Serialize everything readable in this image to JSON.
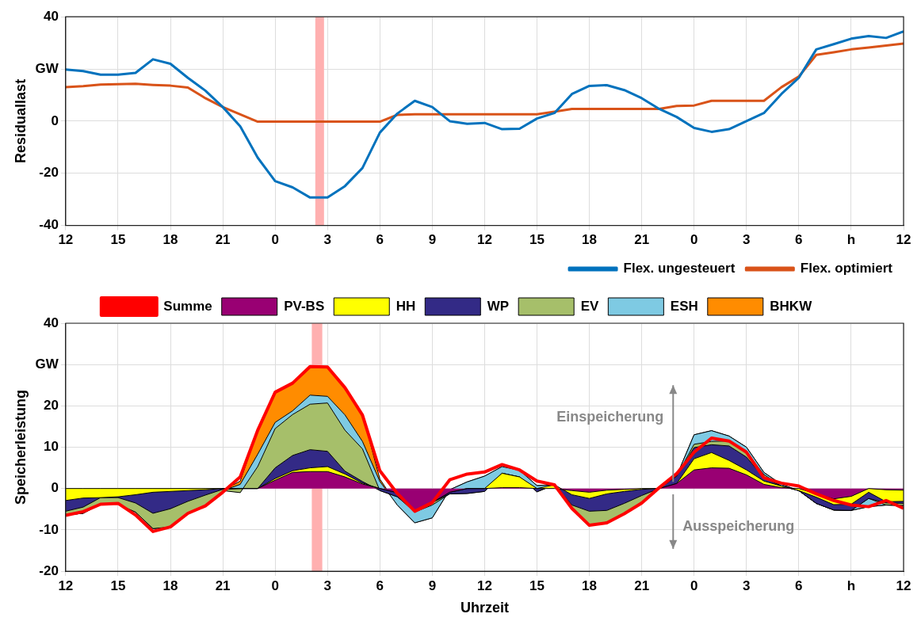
{
  "chart_data": [
    {
      "type": "line",
      "ylabel": "Residuallast",
      "x": [
        "--01-01T12:00",
        "--01-01T13:00",
        "--01-01T14:00",
        "--01-01T15:00",
        "--01-01T16:00",
        "--01-01T17:00",
        "--01-01T18:00",
        "--01-01T19:00",
        "--01-01T20:00",
        "--01-01T21:00",
        "--01-01T22:00",
        "--01-01T23:00",
        "--01-02T00:00",
        "--01-02T01:00",
        "--01-02T02:00",
        "--01-02T03:00",
        "--01-02T04:00",
        "--01-02T05:00",
        "--01-02T06:00",
        "--01-02T07:00",
        "--01-02T08:00",
        "--01-02T09:00",
        "--01-02T10:00",
        "--01-02T11:00",
        "--01-02T12:00",
        "--01-02T13:00",
        "--01-02T14:00",
        "--01-02T15:00",
        "--01-02T16:00",
        "--01-02T17:00",
        "--01-02T18:00",
        "--01-02T19:00",
        "--01-02T20:00",
        "--01-02T21:00",
        "--01-02T22:00",
        "--01-02T23:00",
        "--01-03T00:00",
        "--01-03T01:00",
        "--01-03T02:00",
        "--01-03T03:00",
        "--01-03T04:00",
        "--01-03T05:00",
        "--01-03T06:00",
        "--01-03T07:00",
        "--01-03T08:00",
        "--01-03T09:00",
        "--01-03T10:00",
        "--01-03T11:00",
        "--01-03T12:00"
      ],
      "series": [
        {
          "name": "Flex. ungesteuert",
          "color": "#0072bd",
          "values": [
            19.8,
            19.2,
            17.8,
            17.8,
            18.5,
            23.7,
            22,
            16.6,
            11.7,
            5.4,
            -2,
            -14,
            -23,
            -25.4,
            -29.3,
            -29.3,
            -24.9,
            -18,
            -4.4,
            2.9,
            7.8,
            5.4,
            0,
            -1,
            -0.7,
            -3.1,
            -2.9,
            1,
            3.1,
            10.4,
            13.5,
            13.8,
            11.9,
            8.8,
            4.7,
            1.6,
            -2.6,
            -4.1,
            -3.1,
            0,
            3.1,
            10.4,
            16.6,
            27.5,
            29.5,
            31.6,
            32.6,
            31.9,
            34.4
          ]
        },
        {
          "name": "Flex. optimiert",
          "color": "#d95319",
          "values": [
            13,
            13.4,
            14,
            14.2,
            14.3,
            13.9,
            13.6,
            12.9,
            8.8,
            5.4,
            2.6,
            -0.2,
            -0.2,
            -0.2,
            -0.2,
            -0.2,
            -0.2,
            -0.2,
            -0.2,
            2.4,
            2.6,
            2.6,
            2.6,
            2.6,
            2.6,
            2.6,
            2.6,
            2.6,
            3.6,
            4.7,
            4.7,
            4.7,
            4.7,
            4.7,
            4.7,
            5.8,
            6,
            7.8,
            7.8,
            7.8,
            7.8,
            13,
            17.1,
            25.4,
            26.4,
            27.5,
            28.2,
            29,
            29.7
          ]
        }
      ],
      "xlim": [
        "--01-01T12:00",
        "--01-03T12:00"
      ],
      "xticks": [
        {
          "value": "--01-01T12:00",
          "label": "12"
        },
        {
          "value": "--01-01T15:00",
          "label": "15"
        },
        {
          "value": "--01-01T18:00",
          "label": "18"
        },
        {
          "value": "--01-01T21:00",
          "label": "21"
        },
        {
          "value": "--01-02T00:00",
          "label": "0"
        },
        {
          "value": "--01-02T03:00",
          "label": "3"
        },
        {
          "value": "--01-02T06:00",
          "label": "6"
        },
        {
          "value": "--01-02T09:00",
          "label": "9"
        },
        {
          "value": "--01-02T12:00",
          "label": "12"
        },
        {
          "value": "--01-02T15:00",
          "label": "15"
        },
        {
          "value": "--01-02T18:00",
          "label": "18"
        },
        {
          "value": "--01-02T21:00",
          "label": "21"
        },
        {
          "value": "--01-03T00:00",
          "label": "0"
        },
        {
          "value": "--01-03T03:00",
          "label": "3"
        },
        {
          "value": "--01-03T06:00",
          "label": "6"
        },
        {
          "value": "--01-03T09:00",
          "label": "h"
        },
        {
          "value": "--01-03T12:00",
          "label": "12"
        }
      ],
      "ylim": [
        -40,
        40
      ],
      "yticks": [
        -40,
        -20,
        0,
        {
          "value": 20,
          "label": "GW"
        },
        40
      ],
      "bands": [
        {
          "axis": "x",
          "from": "--01-02T02:18",
          "to": "--01-02T02:48",
          "color": "#ffb0b0"
        }
      ],
      "grid": true,
      "legend": "bottom right"
    },
    {
      "type": "area",
      "stacked": true,
      "ylabel": "Speicherleistung",
      "xlabel": "Uhrzeit",
      "x": [
        "--01-01T12:00",
        "--01-01T13:00",
        "--01-01T14:00",
        "--01-01T15:00",
        "--01-01T16:00",
        "--01-01T17:00",
        "--01-01T18:00",
        "--01-01T19:00",
        "--01-01T20:00",
        "--01-01T21:00",
        "--01-01T22:00",
        "--01-01T23:00",
        "--01-02T00:00",
        "--01-02T01:00",
        "--01-02T02:00",
        "--01-02T03:00",
        "--01-02T04:00",
        "--01-02T05:00",
        "--01-02T06:00",
        "--01-02T07:00",
        "--01-02T08:00",
        "--01-02T09:00",
        "--01-02T10:00",
        "--01-02T11:00",
        "--01-02T12:00",
        "--01-02T13:00",
        "--01-02T14:00",
        "--01-02T15:00",
        "--01-02T16:00",
        "--01-02T17:00",
        "--01-02T18:00",
        "--01-02T19:00",
        "--01-02T20:00",
        "--01-02T21:00",
        "--01-02T22:00",
        "--01-02T23:00",
        "--01-03T00:00",
        "--01-03T01:00",
        "--01-03T02:00",
        "--01-03T03:00",
        "--01-03T04:00",
        "--01-03T05:00",
        "--01-03T06:00",
        "--01-03T07:00",
        "--01-03T08:00",
        "--01-03T09:00",
        "--01-03T10:00",
        "--01-03T11:00",
        "--01-03T12:00"
      ],
      "series": [
        {
          "name": "PV-BS",
          "color": "#990073",
          "values": [
            0,
            0,
            0,
            0,
            0,
            0,
            0,
            0,
            0,
            0,
            0,
            0,
            2.0,
            3.9,
            4.1,
            4.1,
            2.8,
            1.1,
            0,
            -1.0,
            -5.3,
            -3.4,
            -0.9,
            0,
            0,
            0.2,
            0.2,
            0,
            0,
            -0.5,
            -0.9,
            -0.4,
            -0.2,
            0,
            0,
            1.2,
            4.5,
            5.0,
            4.9,
            3.3,
            1.0,
            0.2,
            0,
            -1.3,
            -2.5,
            -1.9,
            0,
            -0.3,
            -0.4
          ]
        },
        {
          "name": "HH",
          "color": "#ffff00",
          "values": [
            -2.9,
            -2.3,
            -2.2,
            -2.0,
            -1.5,
            -0.9,
            -0.7,
            -0.5,
            -0.3,
            0,
            0,
            0,
            0.4,
            0.4,
            0.9,
            1.2,
            0.7,
            0.2,
            0,
            0,
            0,
            0,
            0,
            0,
            0,
            3.5,
            2.6,
            0,
            0.9,
            -1.0,
            -1.5,
            -0.9,
            -0.5,
            -0.2,
            0,
            0,
            2.7,
            3.7,
            1.9,
            1.2,
            0.8,
            0.4,
            -0.5,
            -0.8,
            -1.4,
            -1.9,
            -0.9,
            -2.9,
            -2.7
          ]
        },
        {
          "name": "WP",
          "color": "#332a86",
          "values": [
            -2.6,
            -2.2,
            0,
            -0.2,
            -2.0,
            -5.1,
            -4.2,
            -2.6,
            -1.3,
            -0.2,
            0,
            0,
            2.6,
            3.7,
            4.4,
            3.7,
            0.7,
            0.4,
            -0.5,
            -1.0,
            0,
            0,
            -0.4,
            -1.2,
            -0.7,
            0,
            0,
            -0.8,
            0,
            -2.5,
            -3.1,
            -4.0,
            -2.9,
            -1.5,
            0,
            1.8,
            2.7,
            1.9,
            3.5,
            3.1,
            0.8,
            0,
            0,
            -1.5,
            -1.3,
            -1.5,
            -1.5,
            -0.3,
            -0.5
          ]
        },
        {
          "name": "EV",
          "color": "#a6bf6a",
          "values": [
            -0.9,
            -1.5,
            -1.6,
            -1.6,
            -2.2,
            -3.7,
            -4.4,
            -2.9,
            -2.6,
            -0.3,
            -1.0,
            5.3,
            9.5,
            9.9,
            11,
            11.7,
            9.9,
            7.9,
            0,
            0,
            -0.4,
            -0.6,
            0,
            0,
            0,
            0,
            0,
            0,
            0,
            -0.8,
            -3.5,
            -2.8,
            -2.3,
            -1.6,
            0,
            0,
            0.8,
            0.8,
            1.2,
            1.2,
            0.8,
            0,
            0,
            0,
            0,
            0,
            0,
            -0.5,
            -0.5
          ]
        },
        {
          "name": "ESH",
          "color": "#7ecae3",
          "values": [
            0,
            0,
            0,
            0,
            0,
            0,
            0,
            0,
            0,
            0,
            2.0,
            3.0,
            1.5,
            0.9,
            2.2,
            1.6,
            3.7,
            1.8,
            2.2,
            -2.0,
            -2.6,
            -3.1,
            1.0,
            2.8,
            3.7,
            1.6,
            1.6,
            1.5,
            0,
            0,
            0,
            0,
            0,
            0,
            0,
            0,
            2.3,
            2.6,
            1.2,
            1.2,
            0.5,
            0.4,
            0,
            0,
            0,
            0,
            -2.0,
            0,
            0
          ]
        },
        {
          "name": "BHKW",
          "color": "#ff8c00",
          "values": [
            0,
            0,
            0,
            0,
            0,
            0,
            0,
            0,
            0,
            0,
            0.8,
            5.8,
            7.3,
            6.8,
            7.0,
            7.0,
            6.6,
            6.6,
            0.6,
            0,
            0,
            0,
            0,
            0,
            0,
            0,
            0,
            0,
            0,
            0,
            0,
            0,
            0,
            0,
            0,
            0,
            0,
            0,
            0,
            0,
            0,
            0,
            0,
            0,
            0,
            0,
            0,
            0,
            0
          ]
        },
        {
          "name": "Summe",
          "type": "line",
          "color": "#ff0000",
          "values": [
            -6.5,
            -5.6,
            -3.8,
            -3.6,
            -6.4,
            -10.4,
            -9.3,
            -6.0,
            -4.2,
            -0.9,
            2.8,
            14.1,
            23.3,
            25.5,
            29.5,
            29.4,
            24.4,
            17.8,
            4.3,
            -1.2,
            -5.5,
            -3.4,
            2.1,
            3.5,
            4.0,
            5.8,
            4.5,
            1.8,
            0.9,
            -4.8,
            -8.9,
            -8.3,
            -6.1,
            -3.5,
            0.2,
            3.6,
            8.8,
            12.2,
            11.5,
            8.8,
            2.6,
            1.3,
            0.6,
            -1.3,
            -2.9,
            -4.0,
            -4.4,
            -2.9,
            -4.8
          ]
        }
      ],
      "xlim": [
        "--01-01T12:00",
        "--01-03T12:00"
      ],
      "xticks": [
        {
          "value": "--01-01T12:00",
          "label": "12"
        },
        {
          "value": "--01-01T15:00",
          "label": "15"
        },
        {
          "value": "--01-01T18:00",
          "label": "18"
        },
        {
          "value": "--01-01T21:00",
          "label": "21"
        },
        {
          "value": "--01-02T00:00",
          "label": "0"
        },
        {
          "value": "--01-02T03:00",
          "label": "3"
        },
        {
          "value": "--01-02T06:00",
          "label": "6"
        },
        {
          "value": "--01-02T09:00",
          "label": "9"
        },
        {
          "value": "--01-02T12:00",
          "label": "12"
        },
        {
          "value": "--01-02T15:00",
          "label": "15"
        },
        {
          "value": "--01-02T18:00",
          "label": "18"
        },
        {
          "value": "--01-02T21:00",
          "label": "21"
        },
        {
          "value": "--01-03T00:00",
          "label": "0"
        },
        {
          "value": "--01-03T03:00",
          "label": "3"
        },
        {
          "value": "--01-03T06:00",
          "label": "6"
        },
        {
          "value": "--01-03T09:00",
          "label": "h"
        },
        {
          "value": "--01-03T12:00",
          "label": "12"
        }
      ],
      "ylim": [
        -20,
        40
      ],
      "yticks": [
        -20,
        -10,
        0,
        10,
        20,
        {
          "value": 30,
          "label": "GW"
        },
        40
      ],
      "bands": [
        {
          "axis": "x",
          "from": "--01-02T02:06",
          "to": "--01-02T02:42",
          "color": "#ffb0b0"
        }
      ],
      "annotations": [
        "Einspeicherung",
        "Ausspeicherung"
      ],
      "grid": true,
      "legend": "top"
    }
  ]
}
